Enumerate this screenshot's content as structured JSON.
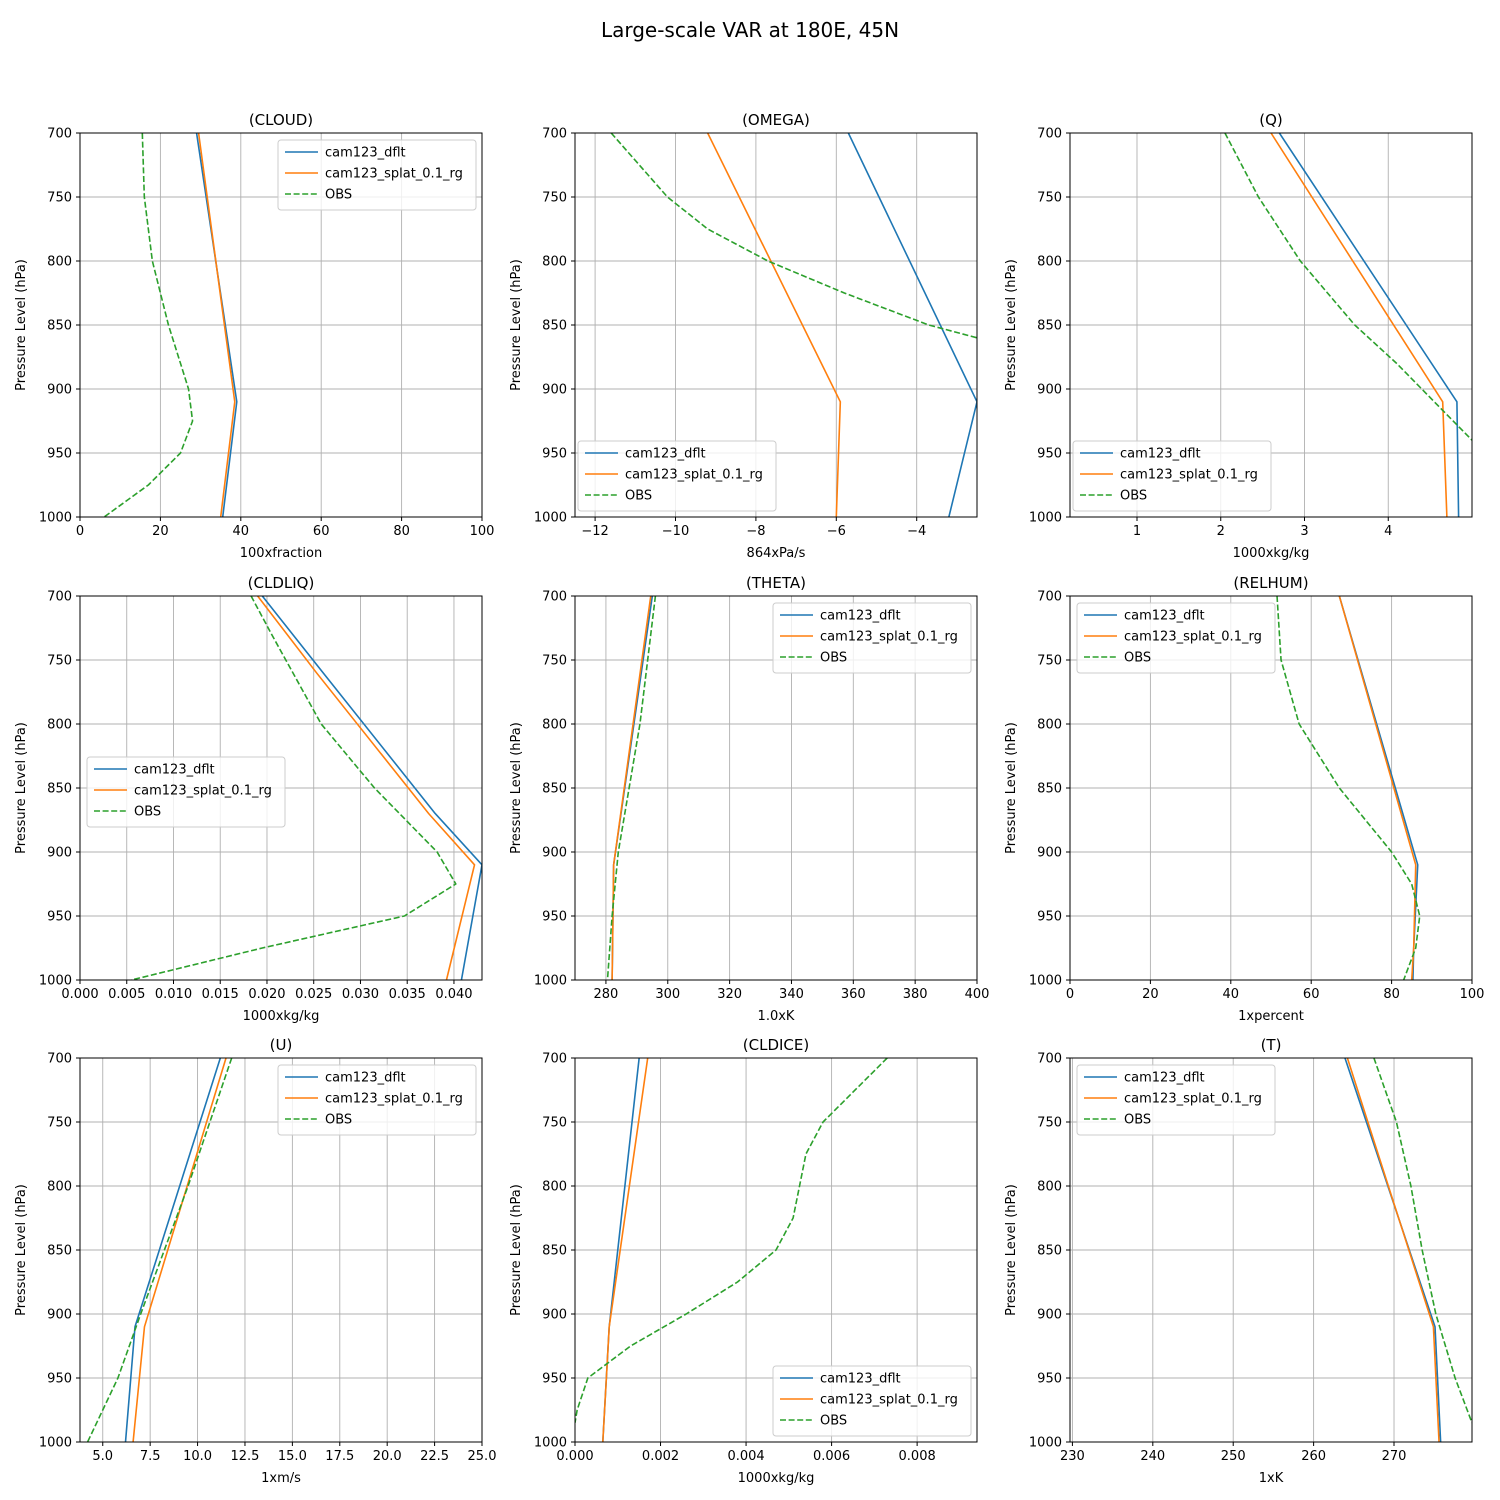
{
  "suptitle": "Large-scale VAR at 180E, 45N",
  "colors": {
    "cam123_dflt": "#1f77b4",
    "cam123_splat_0.1_rg": "#ff7f0e",
    "OBS": "#2ca02c"
  },
  "chart_data": [
    {
      "type": "line",
      "title": "(CLOUD)",
      "xlabel": "100xfraction",
      "ylabel": "Pressure Level (hPa)",
      "xlim": [
        0,
        100
      ],
      "ylim": [
        1000,
        700
      ],
      "xticks": [
        0,
        20,
        40,
        60,
        80,
        100
      ],
      "xtick_labels": [
        "0",
        "20",
        "40",
        "60",
        "80",
        "100"
      ],
      "yticks": [
        700,
        750,
        800,
        850,
        900,
        950,
        1000
      ],
      "ytick_labels": [
        "700",
        "750",
        "800",
        "850",
        "900",
        "950",
        "1000"
      ],
      "legend": "upper right",
      "series": [
        {
          "name": "cam123_dflt",
          "style": "solid",
          "pressure": [
            700,
            910,
            1000
          ],
          "values": [
            29,
            39,
            35.5
          ]
        },
        {
          "name": "cam123_splat_0.1_rg",
          "style": "solid",
          "pressure": [
            700,
            910,
            1000
          ],
          "values": [
            29.5,
            38.5,
            35
          ]
        },
        {
          "name": "OBS",
          "style": "dashed",
          "pressure": [
            700,
            750,
            800,
            850,
            900,
            925,
            950,
            975,
            1000
          ],
          "values": [
            15.5,
            16,
            18,
            22,
            27,
            28,
            25,
            17,
            6
          ]
        }
      ]
    },
    {
      "type": "line",
      "title": "(OMEGA)",
      "xlabel": "864xPa/s",
      "ylabel": "Pressure Level (hPa)",
      "xlim": [
        -12.5,
        -2.5
      ],
      "ylim": [
        1000,
        700
      ],
      "xticks": [
        -12,
        -10,
        -8,
        -6,
        -4
      ],
      "xtick_labels": [
        "−12",
        "−10",
        "−8",
        "−6",
        "−4"
      ],
      "yticks": [
        700,
        750,
        800,
        850,
        900,
        950,
        1000
      ],
      "ytick_labels": [
        "700",
        "750",
        "800",
        "850",
        "900",
        "950",
        "1000"
      ],
      "legend": "lower left",
      "series": [
        {
          "name": "cam123_dflt",
          "style": "solid",
          "pressure": [
            700,
            910,
            1000
          ],
          "values": [
            -5.7,
            -2.5,
            -3.2
          ]
        },
        {
          "name": "cam123_splat_0.1_rg",
          "style": "solid",
          "pressure": [
            700,
            910,
            1000
          ],
          "values": [
            -9.2,
            -5.9,
            -6
          ]
        },
        {
          "name": "OBS",
          "style": "dashed",
          "pressure": [
            700,
            750,
            775,
            800,
            825,
            850,
            860
          ],
          "values": [
            -11.6,
            -10.2,
            -9.2,
            -7.7,
            -5.8,
            -3.7,
            -2.5
          ]
        }
      ]
    },
    {
      "type": "line",
      "title": "(Q)",
      "xlabel": "1000xkg/kg",
      "ylabel": "Pressure Level (hPa)",
      "xlim": [
        0.2,
        5.0
      ],
      "ylim": [
        1000,
        700
      ],
      "xticks": [
        1,
        2,
        3,
        4
      ],
      "xtick_labels": [
        "1",
        "2",
        "3",
        "4"
      ],
      "yticks": [
        700,
        750,
        800,
        850,
        900,
        950,
        1000
      ],
      "ytick_labels": [
        "700",
        "750",
        "800",
        "850",
        "900",
        "950",
        "1000"
      ],
      "legend": "lower left",
      "series": [
        {
          "name": "cam123_dflt",
          "style": "solid",
          "pressure": [
            700,
            910,
            1000
          ],
          "values": [
            2.7,
            4.82,
            4.84
          ]
        },
        {
          "name": "cam123_splat_0.1_rg",
          "style": "solid",
          "pressure": [
            700,
            910,
            1000
          ],
          "values": [
            2.6,
            4.65,
            4.7
          ]
        },
        {
          "name": "OBS",
          "style": "dashed",
          "pressure": [
            700,
            750,
            800,
            850,
            880,
            910,
            940
          ],
          "values": [
            2.05,
            2.45,
            2.95,
            3.6,
            4.1,
            4.55,
            5.0
          ]
        }
      ]
    },
    {
      "type": "line",
      "title": "(CLDLIQ)",
      "xlabel": "1000xkg/kg",
      "ylabel": "Pressure Level (hPa)",
      "xlim": [
        0,
        0.043
      ],
      "ylim": [
        1000,
        700
      ],
      "xticks": [
        0,
        0.005,
        0.01,
        0.015,
        0.02,
        0.025,
        0.03,
        0.035,
        0.04
      ],
      "xtick_labels": [
        "0.000",
        "0.005",
        "0.010",
        "0.015",
        "0.020",
        "0.025",
        "0.030",
        "0.035",
        "0.040"
      ],
      "yticks": [
        700,
        750,
        800,
        850,
        900,
        950,
        1000
      ],
      "ytick_labels": [
        "700",
        "750",
        "800",
        "850",
        "900",
        "950",
        "1000"
      ],
      "legend": "center left",
      "series": [
        {
          "name": "cam123_dflt",
          "style": "solid",
          "pressure": [
            700,
            760,
            870,
            910,
            1000
          ],
          "values": [
            0.0195,
            0.026,
            0.038,
            0.043,
            0.0408
          ]
        },
        {
          "name": "cam123_splat_0.1_rg",
          "style": "solid",
          "pressure": [
            700,
            760,
            870,
            910,
            1000
          ],
          "values": [
            0.019,
            0.0253,
            0.0373,
            0.0422,
            0.0392
          ]
        },
        {
          "name": "OBS",
          "style": "dashed",
          "pressure": [
            700,
            730,
            800,
            850,
            900,
            925,
            950,
            975,
            1000
          ],
          "values": [
            0.0183,
            0.0205,
            0.0258,
            0.0315,
            0.0382,
            0.0402,
            0.0347,
            0.0195,
            0.0055
          ]
        }
      ]
    },
    {
      "type": "line",
      "title": "(THETA)",
      "xlabel": "1.0xK",
      "ylabel": "Pressure Level (hPa)",
      "xlim": [
        270,
        400
      ],
      "ylim": [
        1000,
        700
      ],
      "xticks": [
        280,
        300,
        320,
        340,
        360,
        380,
        400
      ],
      "xtick_labels": [
        "280",
        "300",
        "320",
        "340",
        "360",
        "380",
        "400"
      ],
      "yticks": [
        700,
        750,
        800,
        850,
        900,
        950,
        1000
      ],
      "ytick_labels": [
        "700",
        "750",
        "800",
        "850",
        "900",
        "950",
        "1000"
      ],
      "legend": "upper right",
      "series": [
        {
          "name": "cam123_dflt",
          "style": "solid",
          "pressure": [
            700,
            910,
            1000
          ],
          "values": [
            295,
            282.5,
            282
          ]
        },
        {
          "name": "cam123_splat_0.1_rg",
          "style": "solid",
          "pressure": [
            700,
            910,
            1000
          ],
          "values": [
            294.5,
            282.5,
            282
          ]
        },
        {
          "name": "OBS",
          "style": "dashed",
          "pressure": [
            700,
            800,
            900,
            950,
            1000
          ],
          "values": [
            296,
            291,
            284,
            282,
            280.5
          ]
        }
      ]
    },
    {
      "type": "line",
      "title": "(RELHUM)",
      "xlabel": "1xpercent",
      "ylabel": "Pressure Level (hPa)",
      "xlim": [
        0,
        100
      ],
      "ylim": [
        1000,
        700
      ],
      "xticks": [
        0,
        20,
        40,
        60,
        80,
        100
      ],
      "xtick_labels": [
        "0",
        "20",
        "40",
        "60",
        "80",
        "100"
      ],
      "yticks": [
        700,
        750,
        800,
        850,
        900,
        950,
        1000
      ],
      "ytick_labels": [
        "700",
        "750",
        "800",
        "850",
        "900",
        "950",
        "1000"
      ],
      "legend": "upper left",
      "series": [
        {
          "name": "cam123_dflt",
          "style": "solid",
          "pressure": [
            700,
            910,
            975,
            1000
          ],
          "values": [
            67,
            86.5,
            85.5,
            85.3
          ]
        },
        {
          "name": "cam123_splat_0.1_rg",
          "style": "solid",
          "pressure": [
            700,
            910,
            975,
            1000
          ],
          "values": [
            67,
            86,
            85.5,
            85
          ]
        },
        {
          "name": "OBS",
          "style": "dashed",
          "pressure": [
            700,
            750,
            800,
            850,
            900,
            925,
            950,
            975,
            1000
          ],
          "values": [
            51.5,
            52.5,
            57,
            67,
            80,
            85,
            87,
            86,
            83
          ]
        }
      ]
    },
    {
      "type": "line",
      "title": "(U)",
      "xlabel": "1xm/s",
      "ylabel": "Pressure Level (hPa)",
      "xlim": [
        3.8,
        25.0
      ],
      "ylim": [
        1000,
        700
      ],
      "xticks": [
        5,
        7.5,
        10,
        12.5,
        15,
        17.5,
        20,
        22.5,
        25
      ],
      "xtick_labels": [
        "5.0",
        "7.5",
        "10.0",
        "12.5",
        "15.0",
        "17.5",
        "20.0",
        "22.5",
        "25.0"
      ],
      "yticks": [
        700,
        750,
        800,
        850,
        900,
        950,
        1000
      ],
      "ytick_labels": [
        "700",
        "750",
        "800",
        "850",
        "900",
        "950",
        "1000"
      ],
      "legend": "upper right",
      "series": [
        {
          "name": "cam123_dflt",
          "style": "solid",
          "pressure": [
            700,
            910,
            1000
          ],
          "values": [
            11.2,
            6.7,
            6.2
          ]
        },
        {
          "name": "cam123_splat_0.1_rg",
          "style": "solid",
          "pressure": [
            700,
            910,
            1000
          ],
          "values": [
            11.5,
            7.2,
            6.6
          ]
        },
        {
          "name": "OBS",
          "style": "dashed",
          "pressure": [
            700,
            800,
            900,
            950,
            975,
            1000
          ],
          "values": [
            11.8,
            9.5,
            7.0,
            5.8,
            5.0,
            4.2
          ]
        }
      ]
    },
    {
      "type": "line",
      "title": "(CLDICE)",
      "xlabel": "1000xkg/kg",
      "ylabel": "Pressure Level (hPa)",
      "xlim": [
        0,
        0.0094
      ],
      "ylim": [
        1000,
        700
      ],
      "xticks": [
        0,
        0.002,
        0.004,
        0.006,
        0.008
      ],
      "xtick_labels": [
        "0.000",
        "0.002",
        "0.004",
        "0.006",
        "0.008"
      ],
      "yticks": [
        700,
        750,
        800,
        850,
        900,
        950,
        1000
      ],
      "ytick_labels": [
        "700",
        "750",
        "800",
        "850",
        "900",
        "950",
        "1000"
      ],
      "legend": "lower right",
      "series": [
        {
          "name": "cam123_dflt",
          "style": "solid",
          "pressure": [
            700,
            910,
            1000
          ],
          "values": [
            0.0015,
            0.0008,
            0.00065
          ]
        },
        {
          "name": "cam123_splat_0.1_rg",
          "style": "solid",
          "pressure": [
            700,
            910,
            1000
          ],
          "values": [
            0.0017,
            0.0008,
            0.00065
          ]
        },
        {
          "name": "OBS",
          "style": "dashed",
          "pressure": [
            700,
            750,
            775,
            825,
            850,
            875,
            900,
            925,
            950,
            975,
            985
          ],
          "values": [
            0.0073,
            0.0058,
            0.0054,
            0.0051,
            0.0047,
            0.0038,
            0.0026,
            0.0013,
            0.0003,
            5e-05,
            0.0
          ]
        }
      ]
    },
    {
      "type": "line",
      "title": "(T)",
      "xlabel": "1xK",
      "ylabel": "Pressure Level (hPa)",
      "xlim": [
        229.7,
        279.7
      ],
      "ylim": [
        1000,
        700
      ],
      "xticks": [
        230,
        240,
        250,
        260,
        270
      ],
      "xtick_labels": [
        "230",
        "240",
        "250",
        "260",
        "270"
      ],
      "yticks": [
        700,
        750,
        800,
        850,
        900,
        950,
        1000
      ],
      "ytick_labels": [
        "700",
        "750",
        "800",
        "850",
        "900",
        "950",
        "1000"
      ],
      "legend": "upper left",
      "series": [
        {
          "name": "cam123_dflt",
          "style": "solid",
          "pressure": [
            700,
            910,
            1000
          ],
          "values": [
            263.9,
            275.1,
            275.8
          ]
        },
        {
          "name": "cam123_splat_0.1_rg",
          "style": "solid",
          "pressure": [
            700,
            910,
            1000
          ],
          "values": [
            264.2,
            274.9,
            275.6
          ]
        },
        {
          "name": "OBS",
          "style": "dashed",
          "pressure": [
            700,
            750,
            800,
            850,
            900,
            950,
            985
          ],
          "values": [
            267.5,
            270.3,
            272.1,
            273.5,
            275.2,
            277.6,
            279.7
          ]
        }
      ]
    }
  ]
}
